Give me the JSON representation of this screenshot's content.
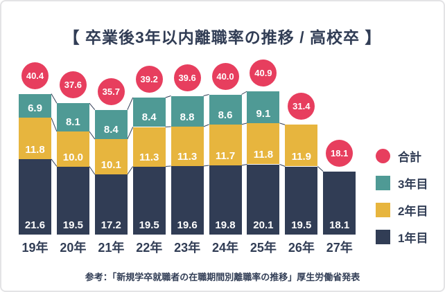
{
  "title": "【 卒業後3年以内離職率の推移 / 高校卒 】",
  "source_note": "参考：「新規学卒就職者の在職期間別離職率の推移」厚生労働省発表",
  "colors": {
    "navy": "#313d55",
    "yellow": "#e7b53e",
    "teal": "#4f9a95",
    "red": "#e73e5e",
    "card_background": "#ffffff",
    "card_border": "#e3e3e5",
    "label_text": "#ffffff",
    "connector_line": "#313d55"
  },
  "legend": {
    "items": [
      {
        "key": "total",
        "label": "合計",
        "color": "#e73e5e",
        "shape": "circle"
      },
      {
        "key": "year3",
        "label": "3年目",
        "color": "#4f9a95",
        "shape": "square"
      },
      {
        "key": "year2",
        "label": "2年目",
        "color": "#e7b53e",
        "shape": "square"
      },
      {
        "key": "year1",
        "label": "1年目",
        "color": "#313d55",
        "shape": "square"
      }
    ]
  },
  "chart_data": {
    "type": "bar",
    "subtype": "stacked",
    "title": "卒業後3年以内離職率の推移 / 高校卒",
    "categories": [
      "19年",
      "20年",
      "21年",
      "22年",
      "23年",
      "24年",
      "25年",
      "26年",
      "27年"
    ],
    "series": [
      {
        "name": "1年目",
        "key": "year1",
        "color": "#313d55",
        "values": [
          21.6,
          19.5,
          17.2,
          19.5,
          19.6,
          19.8,
          20.1,
          19.5,
          18.1
        ]
      },
      {
        "name": "2年目",
        "key": "year2",
        "color": "#e7b53e",
        "values": [
          11.8,
          10.0,
          10.1,
          11.3,
          11.3,
          11.7,
          11.8,
          11.9,
          null
        ]
      },
      {
        "name": "3年目",
        "key": "year3",
        "color": "#4f9a95",
        "values": [
          6.9,
          8.1,
          8.4,
          8.4,
          8.8,
          8.6,
          9.1,
          null,
          null
        ]
      }
    ],
    "totals": {
      "name": "合計",
      "color": "#e73e5e",
      "values": [
        40.4,
        37.6,
        35.7,
        39.2,
        39.6,
        40.0,
        40.9,
        31.4,
        18.1
      ]
    },
    "value_decimals": 1,
    "axis": {
      "x_labels_visible": true,
      "y_axis_visible": false,
      "gridlines": false
    },
    "legend_position": "right"
  }
}
